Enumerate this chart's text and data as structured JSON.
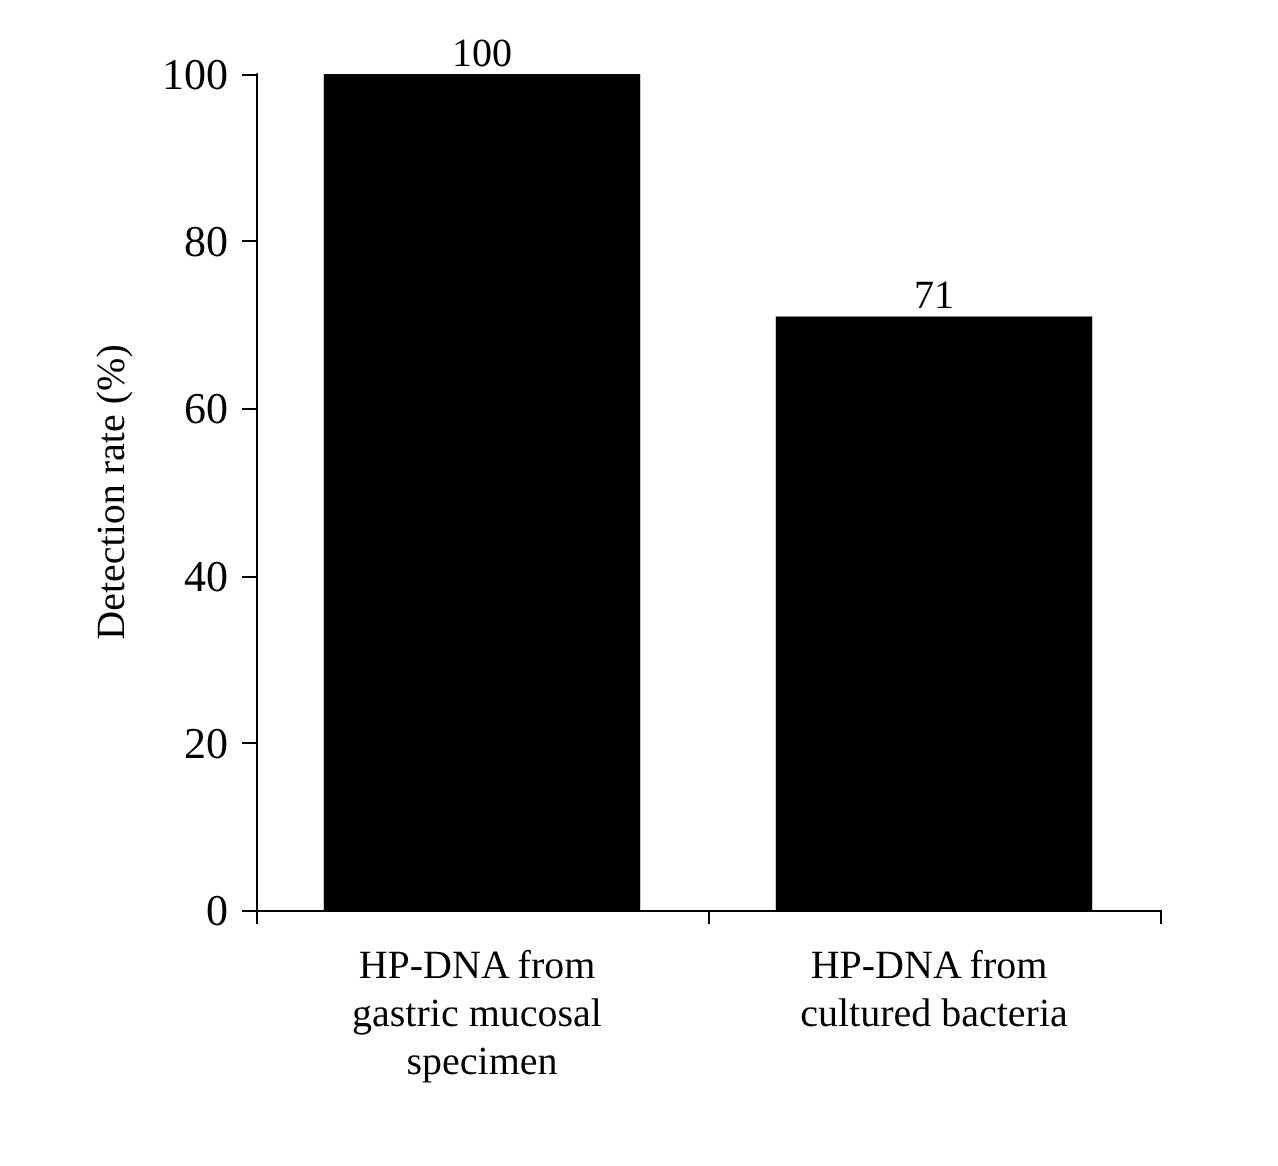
{
  "chart_data": {
    "type": "bar",
    "ylabel": "Detection rate (%)",
    "categories": [
      "HP-DNA from gastric mucosal specimen",
      "HP-DNA from cultured bacteria"
    ],
    "values": [
      100,
      71
    ],
    "color": "#000000",
    "ylim": [
      0,
      100
    ],
    "yticks": [
      0,
      20,
      40,
      60,
      80,
      100
    ],
    "grid": false,
    "data_labels": true
  }
}
